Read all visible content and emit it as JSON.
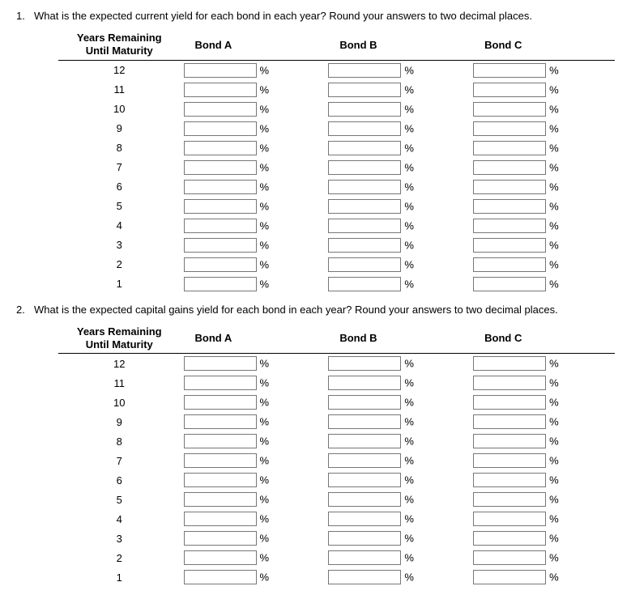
{
  "questions": [
    {
      "number": "1.",
      "text": "What is the expected current yield for each bond in each year? Round your answers to two decimal places.",
      "header_col1_line1": "Years Remaining",
      "header_col1_line2": "Until Maturity",
      "header_bondA": "Bond A",
      "header_bondB": "Bond B",
      "header_bondC": "Bond C",
      "years": [
        "12",
        "11",
        "10",
        "9",
        "8",
        "7",
        "6",
        "5",
        "4",
        "3",
        "2",
        "1"
      ],
      "unit": "%"
    },
    {
      "number": "2.",
      "text": "What is the expected capital gains yield for each bond in each year? Round your answers to two decimal places.",
      "header_col1_line1": "Years Remaining",
      "header_col1_line2": "Until Maturity",
      "header_bondA": "Bond A",
      "header_bondB": "Bond B",
      "header_bondC": "Bond C",
      "years": [
        "12",
        "11",
        "10",
        "9",
        "8",
        "7",
        "6",
        "5",
        "4",
        "3",
        "2",
        "1"
      ],
      "unit": "%"
    }
  ]
}
